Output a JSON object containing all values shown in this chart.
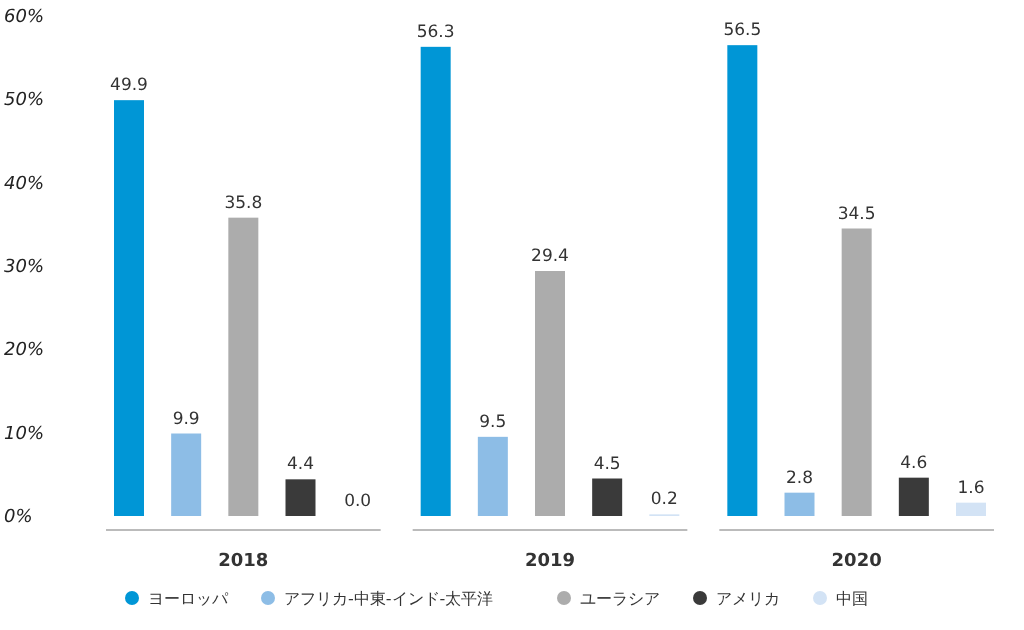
{
  "chart_data": {
    "type": "bar",
    "categories": [
      "2018",
      "2019",
      "2020"
    ],
    "series": [
      {
        "name": "ヨーロッパ",
        "color": "#0096d6",
        "values": [
          49.9,
          56.3,
          56.5
        ]
      },
      {
        "name": "アフリカ-中東-インド-太平洋",
        "color": "#8dbde6",
        "values": [
          9.9,
          9.5,
          2.8
        ]
      },
      {
        "name": "ユーラシア",
        "color": "#acacac",
        "values": [
          35.8,
          29.4,
          34.5
        ]
      },
      {
        "name": "アメリカ",
        "color": "#3a3a3a",
        "values": [
          4.4,
          4.5,
          4.6
        ]
      },
      {
        "name": "中国",
        "color": "#d3e3f5",
        "values": [
          0.0,
          0.2,
          1.6
        ],
        "value_labels": [
          "0.0",
          "0.2",
          "1.6"
        ]
      }
    ],
    "ylim": [
      0,
      60
    ],
    "yticks": [
      {
        "value": 0,
        "label": "0%"
      },
      {
        "value": 10,
        "label": "10%"
      },
      {
        "value": 20,
        "label": "20%"
      },
      {
        "value": 30,
        "label": "30%"
      },
      {
        "value": 40,
        "label": "40%"
      },
      {
        "value": 50,
        "label": "50%"
      },
      {
        "value": 60,
        "label": "60%"
      }
    ],
    "data_labels": true,
    "grid": false,
    "legend": "bottom"
  }
}
